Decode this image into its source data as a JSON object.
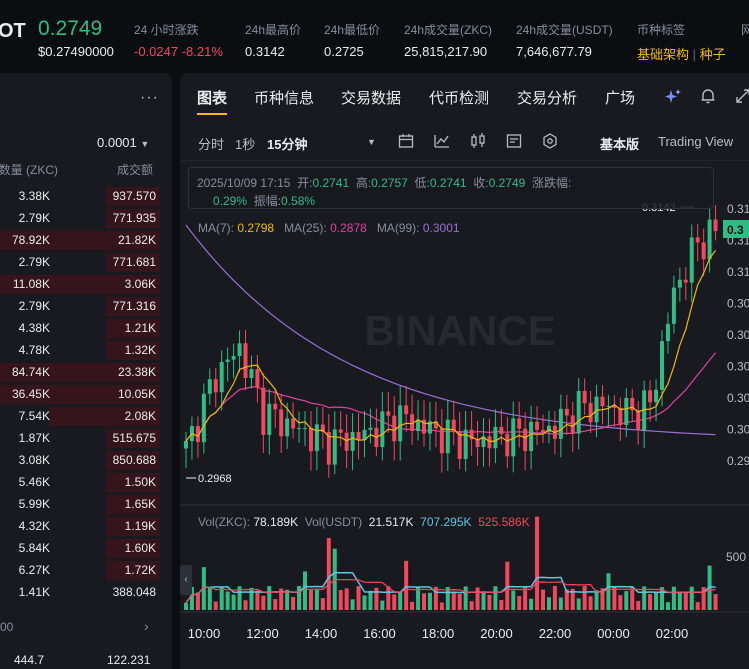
{
  "header": {
    "symbol": "OT",
    "price": "0.2749",
    "price_usd": "$0.27490000",
    "stats": [
      {
        "label": "24 小时涨跌",
        "value": "-0.0247",
        "value2": "-8.21%"
      },
      {
        "label": "24h最高价",
        "value": "0.3142"
      },
      {
        "label": "24h最低价",
        "value": "0.2725"
      },
      {
        "label": "24h成交量(ZKC)",
        "value": "25,815,217.90"
      },
      {
        "label": "24h成交量(USDT)",
        "value": "7,646,677.79"
      },
      {
        "label": "币种标签",
        "tag1": "基础架构",
        "tag2": "种子"
      },
      {
        "label": "网"
      }
    ]
  },
  "orderbook": {
    "menu_icon": "more-dots-icon",
    "precision": "0.0001",
    "col_amount": "数量 (ZKC)",
    "col_total": "成交额",
    "rows": [
      {
        "amount": "3.38K",
        "total": "937.570",
        "depth": 0.34
      },
      {
        "amount": "2.79K",
        "total": "771.935",
        "depth": 0.34
      },
      {
        "amount": "78.92K",
        "total": "21.82K",
        "depth": 1.0
      },
      {
        "amount": "2.79K",
        "total": "771.681",
        "depth": 0.34
      },
      {
        "amount": "11.08K",
        "total": "3.06K",
        "depth": 1.0
      },
      {
        "amount": "2.79K",
        "total": "771.316",
        "depth": 0.34
      },
      {
        "amount": "4.38K",
        "total": "1.21K",
        "depth": 0.34
      },
      {
        "amount": "4.78K",
        "total": "1.32K",
        "depth": 0.34
      },
      {
        "amount": "84.74K",
        "total": "23.38K",
        "depth": 1.0
      },
      {
        "amount": "36.45K",
        "total": "10.05K",
        "depth": 1.0
      },
      {
        "amount": "7.54K",
        "total": "2.08K",
        "depth": 0.7
      },
      {
        "amount": "1.87K",
        "total": "515.675",
        "depth": 0.34
      },
      {
        "amount": "3.08K",
        "total": "850.688",
        "depth": 0.34
      },
      {
        "amount": "5.46K",
        "total": "1.50K",
        "depth": 0.34
      },
      {
        "amount": "5.99K",
        "total": "1.65K",
        "depth": 0.34
      },
      {
        "amount": "4.32K",
        "total": "1.19K",
        "depth": 0.34
      },
      {
        "amount": "5.84K",
        "total": "1.60K",
        "depth": 0.34
      },
      {
        "amount": "6.27K",
        "total": "1.72K",
        "depth": 0.34
      },
      {
        "amount": "1.41K",
        "total": "388.048",
        "depth": 0.0
      }
    ],
    "mid_row": "00",
    "last_row_amount": "444.7",
    "last_row_total": "122.231"
  },
  "tabs": [
    "图表",
    "币种信息",
    "交易数据",
    "代币检测",
    "交易分析",
    "广场"
  ],
  "toolbar": {
    "time_label": "分时",
    "sec_label": "1秒",
    "interval": "15分钟",
    "basic_view": "基本版",
    "trading_view": "Trading View"
  },
  "candle_info": {
    "date": "2025/10/09 17:15",
    "open_label": "开:",
    "open": "0.2741",
    "high_label": "高:",
    "high": "0.2757",
    "low_label": "低:",
    "low": "0.2741",
    "close_label": "收:",
    "close": "0.2749",
    "change_label": "涨跌幅:",
    "change": "0.29%",
    "amp_label": "振幅:",
    "amp": "0.58%"
  },
  "ma": {
    "ma7_label": "MA(7):",
    "ma7": "0.2798",
    "ma25_label": "MA(25):",
    "ma25": "0.2878",
    "ma99_label": "MA(99):",
    "ma99": "0.3001"
  },
  "vol": {
    "zkc_label": "Vol(ZKC):",
    "zkc": "78.189K",
    "usdt_label": "Vol(USDT)",
    "usdt": "21.517K",
    "ma1": "707.295K",
    "ma2": "525.586K"
  },
  "watermark": "BINANCE",
  "chart_data": {
    "type": "candlestick",
    "x_ticks": [
      "10:00",
      "12:00",
      "14:00",
      "16:00",
      "18:00",
      "20:00",
      "22:00",
      "00:00",
      "02:00"
    ],
    "max_label": "0.3142",
    "min_label": "0.2968",
    "y_ticks_right": [
      "0.31",
      "0.31",
      "0.31",
      "0.30",
      "0.30",
      "0.30",
      "0.30",
      "0.30",
      "0.29"
    ],
    "current_price_tag": "0.3",
    "vol_axis_label": "500",
    "colors": {
      "up": "#2ebd85",
      "down": "#f6465d",
      "ma7": "#f0b90b",
      "ma25": "#e040a0",
      "ma99": "#9b6fd6"
    }
  }
}
